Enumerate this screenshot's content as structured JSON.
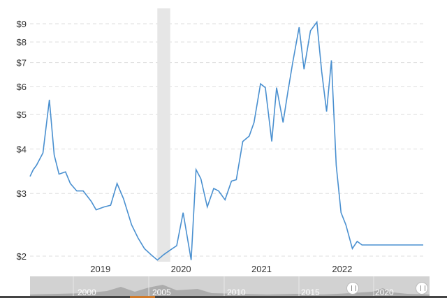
{
  "chart_data": {
    "type": "line",
    "scale": "log",
    "y_ticks": [
      {
        "value": 2,
        "label": "$2"
      },
      {
        "value": 3,
        "label": "$3"
      },
      {
        "value": 4,
        "label": "$4"
      },
      {
        "value": 5,
        "label": "$5"
      },
      {
        "value": 6,
        "label": "$6"
      },
      {
        "value": 7,
        "label": "$7"
      },
      {
        "value": 8,
        "label": "$8"
      },
      {
        "value": 9,
        "label": "$9"
      }
    ],
    "ylim": [
      1.9,
      10
    ],
    "xlim": [
      2018.04,
      2022.92
    ],
    "x_ticks": [
      {
        "value": 2019.0,
        "label": "2019"
      },
      {
        "value": 2020.0,
        "label": "2020"
      },
      {
        "value": 2021.0,
        "label": "2021"
      },
      {
        "value": 2022.0,
        "label": "2022"
      }
    ],
    "recession_band": [
      2019.62,
      2019.78
    ],
    "grid": true,
    "line_color": "#4a90d0",
    "series": [
      {
        "x": [
          2018.04,
          2018.08,
          2018.12,
          2018.2,
          2018.28,
          2018.34,
          2018.4,
          2018.48,
          2018.54,
          2018.62,
          2018.7,
          2018.8,
          2018.86,
          2018.96,
          2019.04,
          2019.12,
          2019.2,
          2019.3,
          2019.38,
          2019.46,
          2019.54,
          2019.62,
          2019.7,
          2019.78,
          2019.86,
          2019.94,
          2020.04,
          2020.1,
          2020.16,
          2020.24,
          2020.32,
          2020.38,
          2020.46,
          2020.54,
          2020.6,
          2020.68,
          2020.76,
          2020.82,
          2020.9,
          2020.96,
          2021.04,
          2021.1,
          2021.18,
          2021.24,
          2021.3,
          2021.38,
          2021.44,
          2021.52,
          2021.6,
          2021.66,
          2021.72,
          2021.78,
          2021.84,
          2021.9,
          2021.96,
          2022.04,
          2022.1,
          2022.16,
          2022.22,
          2022.28,
          2022.34,
          2022.42,
          2022.5,
          2022.56,
          2022.62,
          2022.68,
          2022.74,
          2022.82,
          2022.92
        ],
        "y": [
          3.35,
          3.5,
          3.6,
          3.9,
          5.5,
          3.85,
          3.4,
          3.45,
          3.2,
          3.05,
          3.05,
          2.85,
          2.7,
          2.75,
          2.78,
          3.2,
          2.9,
          2.45,
          2.25,
          2.1,
          2.02,
          1.95,
          2.02,
          2.08,
          2.14,
          2.65,
          1.95,
          3.5,
          3.3,
          2.75,
          3.1,
          3.05,
          2.88,
          3.25,
          3.28,
          4.2,
          4.35,
          4.75,
          6.1,
          5.95,
          4.2,
          5.95,
          4.75,
          5.8,
          7.0,
          8.8,
          6.7,
          8.6,
          9.1,
          6.6,
          5.1,
          7.1,
          3.6,
          2.65,
          2.45,
          2.1,
          2.2,
          2.15,
          2.15,
          2.15,
          2.15,
          2.15,
          2.15,
          2.15,
          2.15,
          2.15,
          2.15,
          2.15,
          2.15
        ]
      }
    ]
  },
  "navigator": {
    "labels": [
      "2000",
      "2005",
      "2010",
      "2015",
      "2020"
    ]
  }
}
